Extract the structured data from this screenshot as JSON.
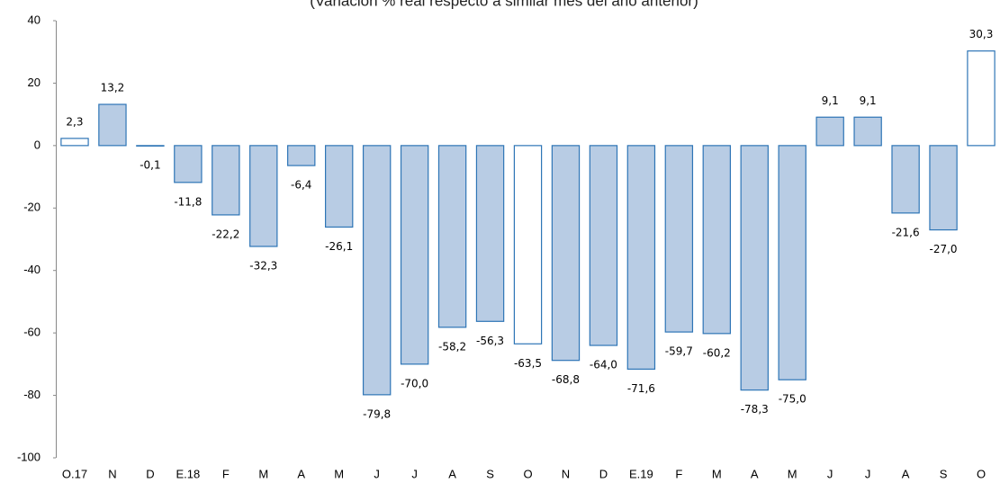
{
  "chart_data": {
    "type": "bar",
    "subtitle": "(Variación % real respecto a similar mes del año anterior)",
    "categories": [
      "O.17",
      "N",
      "D",
      "E.18",
      "F",
      "M",
      "A",
      "M",
      "J",
      "J",
      "A",
      "S",
      "O",
      "N",
      "D",
      "E.19",
      "F",
      "M",
      "A",
      "M",
      "J",
      "J",
      "A",
      "S",
      "O"
    ],
    "values": [
      2.3,
      13.2,
      -0.1,
      -11.8,
      -22.2,
      -32.3,
      -6.4,
      -26.1,
      -79.8,
      -70,
      -58.2,
      -56.3,
      -63.5,
      -68.8,
      -64,
      -71.6,
      -59.7,
      -60.2,
      -78.3,
      -75,
      9.1,
      9.1,
      -21.6,
      -27,
      30.3
    ],
    "value_labels": [
      "2,3",
      "13,2",
      "-0,1",
      "-11,8",
      "-22,2",
      "-32,3",
      "-6,4",
      "-26,1",
      "-79,8",
      "-70,0",
      "-58,2",
      "-56,3",
      "-63,5",
      "-68,8",
      "-64,0",
      "-71,6",
      "-59,7",
      "-60,2",
      "-78,3",
      "-75,0",
      "9,1",
      "9,1",
      "-21,6",
      "-27,0",
      "30,3"
    ],
    "colors": [
      "#ffffff",
      "#b8cce4",
      "#b8cce4",
      "#b8cce4",
      "#b8cce4",
      "#b8cce4",
      "#b8cce4",
      "#b8cce4",
      "#b8cce4",
      "#b8cce4",
      "#b8cce4",
      "#b8cce4",
      "#ffffff",
      "#b8cce4",
      "#b8cce4",
      "#b8cce4",
      "#b8cce4",
      "#b8cce4",
      "#b8cce4",
      "#b8cce4",
      "#b8cce4",
      "#b8cce4",
      "#b8cce4",
      "#b8cce4",
      "#ffffff"
    ],
    "edge_color": "#2e75b6",
    "ylim": [
      -100,
      40
    ],
    "yticks": [
      -100,
      -80,
      -60,
      -40,
      -20,
      0,
      20,
      40
    ],
    "grid": false
  }
}
